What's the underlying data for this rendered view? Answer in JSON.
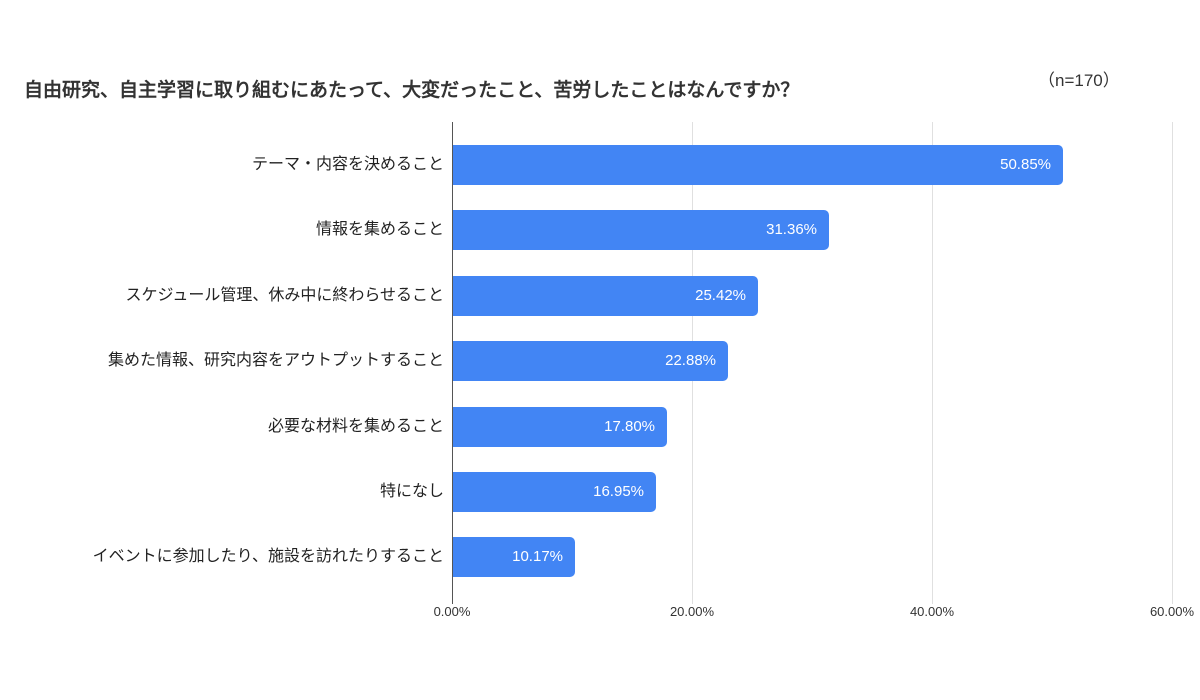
{
  "header": {
    "title": "自由研究、自主学習に取り組むにあたって、大変だったこと、苦労したことはなんですか？",
    "n_label": "（n=170）"
  },
  "chart_data": {
    "type": "bar",
    "orientation": "horizontal",
    "title": "自由研究、自主学習に取り組むにあたって、大変だったこと、苦労したことはなんですか？",
    "sample_size_text": "（n=170）",
    "categories": [
      "テーマ・内容を決めること",
      "情報を集めること",
      "スケジュール管理、休み中に終わらせること",
      "集めた情報、研究内容をアウトプットすること",
      "必要な材料を集めること",
      "特になし",
      "イベントに参加したり、施設を訪れたりすること"
    ],
    "values": [
      50.85,
      31.36,
      25.42,
      22.88,
      17.8,
      16.95,
      10.17
    ],
    "value_labels": [
      "50.85%",
      "31.36%",
      "25.42%",
      "22.88%",
      "17.80%",
      "16.95%",
      "10.17%"
    ],
    "xlabel": "",
    "ylabel": "",
    "xlim": [
      0,
      60
    ],
    "x_ticks": [
      {
        "value": 0,
        "label": "0.00%"
      },
      {
        "value": 20,
        "label": "20.00%"
      },
      {
        "value": 40,
        "label": "40.00%"
      },
      {
        "value": 60,
        "label": "60.00%"
      }
    ],
    "grid": "vertical-only",
    "legend": "none",
    "colors": {
      "bar": "#4285F4",
      "value_label": "#ffffff",
      "gridline": "#e0e0e0",
      "zero_axis": "#555555",
      "title": "#333333",
      "category_label": "#222222",
      "tick_label": "#333333",
      "background": "#ffffff"
    }
  }
}
